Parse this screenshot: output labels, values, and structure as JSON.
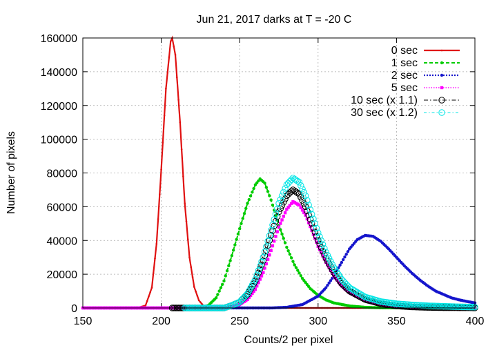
{
  "chart_data": {
    "type": "line",
    "title": "Jun 21, 2017 darks at T = -20 C",
    "xlabel": "Counts/2 per pixel",
    "ylabel": "Number of pixels",
    "xlim": [
      150,
      400
    ],
    "ylim": [
      0,
      160000
    ],
    "xticks": [
      150,
      200,
      250,
      300,
      350,
      400
    ],
    "yticks": [
      0,
      20000,
      40000,
      60000,
      80000,
      100000,
      120000,
      140000,
      160000
    ],
    "grid": true,
    "legend_position": "top-right",
    "series": [
      {
        "name": "0 sec",
        "color": "#e01010",
        "marker": "dot",
        "points": [
          [
            150,
            0
          ],
          [
            185,
            100
          ],
          [
            190,
            1500
          ],
          [
            194,
            12000
          ],
          [
            197,
            38000
          ],
          [
            200,
            82000
          ],
          [
            203,
            130000
          ],
          [
            206,
            158000
          ],
          [
            207,
            160000
          ],
          [
            209,
            150000
          ],
          [
            212,
            110000
          ],
          [
            215,
            62000
          ],
          [
            218,
            30000
          ],
          [
            221,
            12500
          ],
          [
            224,
            4500
          ],
          [
            227,
            1200
          ],
          [
            230,
            300
          ],
          [
            235,
            0
          ],
          [
            400,
            0
          ]
        ]
      },
      {
        "name": "1 sec",
        "color": "#00cc00",
        "marker": "filled-circle",
        "points": [
          [
            150,
            0
          ],
          [
            225,
            0
          ],
          [
            230,
            1500
          ],
          [
            235,
            6000
          ],
          [
            240,
            16000
          ],
          [
            245,
            31000
          ],
          [
            250,
            47000
          ],
          [
            255,
            62000
          ],
          [
            260,
            73000
          ],
          [
            263,
            76500
          ],
          [
            266,
            74000
          ],
          [
            270,
            64000
          ],
          [
            275,
            49000
          ],
          [
            280,
            36000
          ],
          [
            285,
            25500
          ],
          [
            290,
            17500
          ],
          [
            295,
            11500
          ],
          [
            300,
            7500
          ],
          [
            305,
            4800
          ],
          [
            310,
            3000
          ],
          [
            320,
            1200
          ],
          [
            330,
            400
          ],
          [
            340,
            100
          ],
          [
            400,
            0
          ]
        ]
      },
      {
        "name": "2 sec",
        "color": "#1515cc",
        "marker": "filled-circle",
        "points": [
          [
            150,
            0
          ],
          [
            270,
            0
          ],
          [
            280,
            400
          ],
          [
            290,
            2000
          ],
          [
            300,
            7000
          ],
          [
            305,
            12000
          ],
          [
            310,
            19000
          ],
          [
            315,
            27000
          ],
          [
            320,
            35000
          ],
          [
            325,
            40500
          ],
          [
            330,
            43000
          ],
          [
            335,
            42500
          ],
          [
            340,
            39500
          ],
          [
            345,
            35000
          ],
          [
            350,
            30000
          ],
          [
            355,
            25000
          ],
          [
            360,
            20500
          ],
          [
            365,
            16500
          ],
          [
            370,
            13000
          ],
          [
            375,
            10000
          ],
          [
            380,
            8000
          ],
          [
            385,
            6000
          ],
          [
            390,
            4800
          ],
          [
            395,
            3800
          ],
          [
            400,
            3000
          ]
        ]
      },
      {
        "name": "5 sec",
        "color": "#ff00ff",
        "marker": "filled-square",
        "points": [
          [
            150,
            0
          ],
          [
            240,
            0
          ],
          [
            250,
            2000
          ],
          [
            255,
            5000
          ],
          [
            260,
            11000
          ],
          [
            265,
            21000
          ],
          [
            270,
            34000
          ],
          [
            275,
            48000
          ],
          [
            280,
            58500
          ],
          [
            284,
            63000
          ],
          [
            288,
            61000
          ],
          [
            292,
            55000
          ],
          [
            296,
            46000
          ],
          [
            300,
            36500
          ],
          [
            305,
            27000
          ],
          [
            310,
            19000
          ],
          [
            315,
            13000
          ],
          [
            320,
            9000
          ],
          [
            330,
            4200
          ],
          [
            340,
            2000
          ],
          [
            350,
            900
          ],
          [
            360,
            400
          ],
          [
            400,
            0
          ]
        ]
      },
      {
        "name": "10 sec (x 1.1)",
        "color": "#000000",
        "marker": "open-circle",
        "points": [
          [
            207,
            0
          ],
          [
            212,
            0
          ],
          [
            240,
            0
          ],
          [
            245,
            1500
          ],
          [
            250,
            3500
          ],
          [
            255,
            8000
          ],
          [
            260,
            16000
          ],
          [
            265,
            28000
          ],
          [
            270,
            43000
          ],
          [
            275,
            57000
          ],
          [
            280,
            66500
          ],
          [
            284,
            70000
          ],
          [
            288,
            67500
          ],
          [
            292,
            60000
          ],
          [
            296,
            50000
          ],
          [
            300,
            40000
          ],
          [
            305,
            29500
          ],
          [
            310,
            21000
          ],
          [
            315,
            14500
          ],
          [
            320,
            10000
          ],
          [
            330,
            5000
          ],
          [
            340,
            2500
          ],
          [
            350,
            1200
          ],
          [
            360,
            600
          ],
          [
            370,
            300
          ],
          [
            380,
            150
          ],
          [
            400,
            50
          ]
        ]
      },
      {
        "name": "30 sec (x 1.2)",
        "color": "#00e5e5",
        "marker": "open-circle",
        "points": [
          [
            215,
            0
          ],
          [
            240,
            0
          ],
          [
            245,
            1500
          ],
          [
            250,
            3500
          ],
          [
            255,
            8500
          ],
          [
            260,
            17000
          ],
          [
            265,
            30000
          ],
          [
            270,
            46000
          ],
          [
            275,
            62000
          ],
          [
            280,
            73000
          ],
          [
            284,
            77000
          ],
          [
            288,
            74500
          ],
          [
            292,
            66500
          ],
          [
            296,
            55500
          ],
          [
            300,
            44500
          ],
          [
            305,
            33000
          ],
          [
            310,
            24000
          ],
          [
            315,
            17000
          ],
          [
            320,
            12000
          ],
          [
            330,
            6500
          ],
          [
            340,
            3800
          ],
          [
            350,
            2500
          ],
          [
            360,
            1800
          ],
          [
            370,
            1300
          ],
          [
            380,
            1000
          ],
          [
            390,
            700
          ],
          [
            400,
            500
          ]
        ]
      }
    ]
  }
}
